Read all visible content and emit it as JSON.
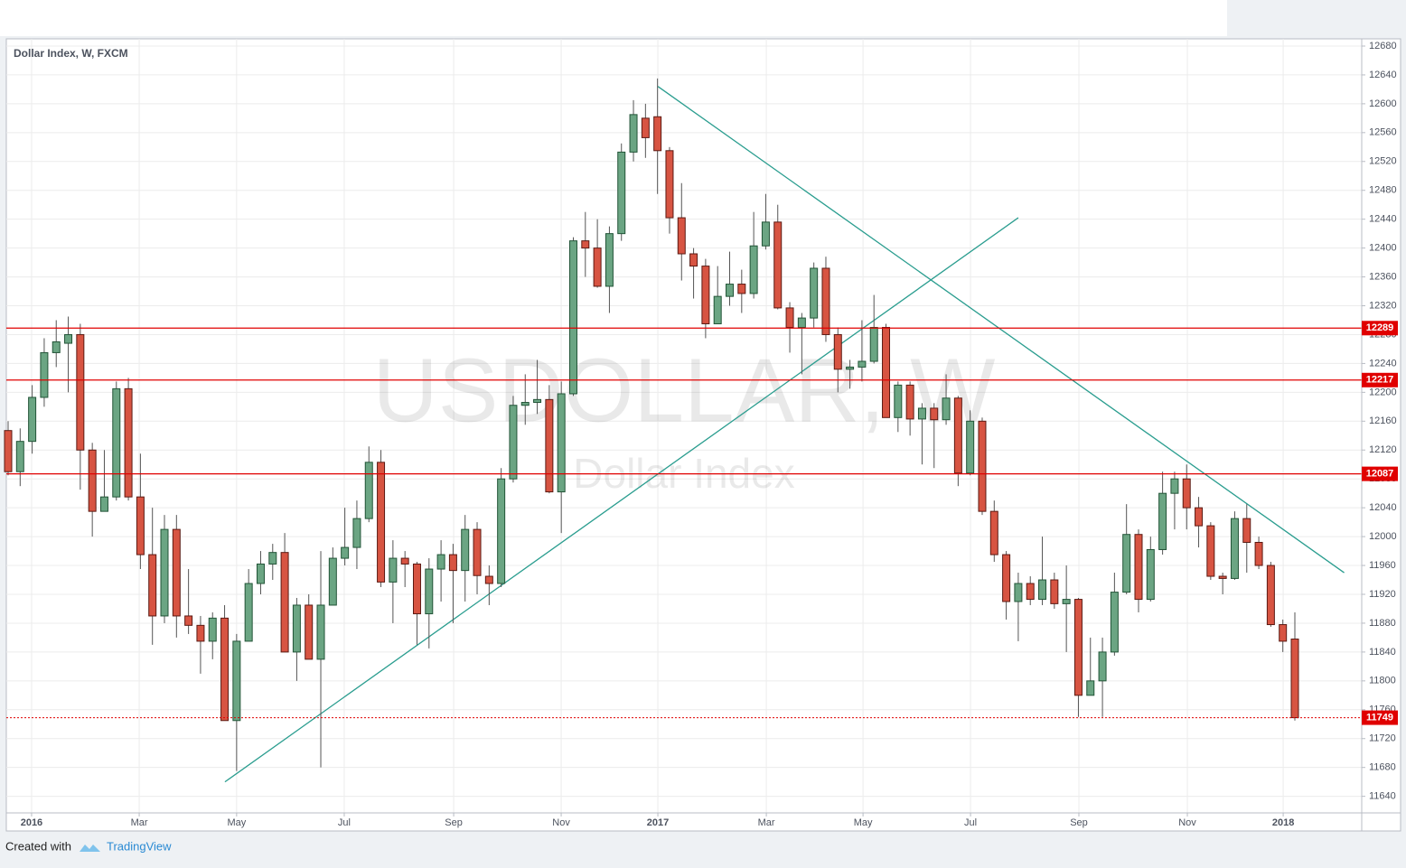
{
  "chart_data": {
    "type": "candlestick",
    "title": "Dollar Index, W, FXCM",
    "watermark": "USDOLLAR, W",
    "watermark_subtitle": "Dollar Index",
    "up_color": "#6ba583",
    "down_color": "#d75442",
    "x": [
      0,
      1,
      2,
      3,
      4,
      5,
      6,
      7,
      8,
      9,
      10,
      11,
      12,
      13,
      14,
      15,
      16,
      17,
      18,
      19,
      20,
      21,
      22,
      23,
      24,
      25,
      26,
      27,
      28,
      29,
      30,
      31,
      32,
      33,
      34,
      35,
      36,
      37,
      38,
      39,
      40,
      41,
      42,
      43,
      44,
      45,
      46,
      47,
      48,
      49,
      50,
      51,
      52,
      53,
      54,
      55,
      56,
      57,
      58,
      59,
      60,
      61,
      62,
      63,
      64,
      65,
      66,
      67,
      68,
      69,
      70,
      71,
      72,
      73,
      74,
      75,
      76,
      77,
      78,
      79,
      80,
      81,
      82,
      83,
      84,
      85,
      86,
      87,
      88,
      89,
      90,
      91,
      92,
      93,
      94,
      95,
      96,
      97,
      98,
      99,
      100,
      101,
      102,
      103,
      104,
      105,
      106,
      107
    ],
    "open": [
      12147,
      12090,
      12132,
      12193,
      12255,
      12268,
      12280,
      12120,
      12035,
      12055,
      12205,
      12055,
      11975,
      11890,
      12010,
      11890,
      11877,
      11855,
      11887,
      11745,
      11855,
      11935,
      11962,
      11978,
      11840,
      11905,
      11830,
      11905,
      11970,
      11985,
      12025,
      12103,
      11937,
      11970,
      11962,
      11893,
      11955,
      11975,
      11953,
      12010,
      11945,
      11935,
      12080,
      12182,
      12186,
      12190,
      12062,
      12198,
      12410,
      12400,
      12347,
      12420,
      12533,
      12580,
      12582,
      12535,
      12442,
      12392,
      12375,
      12295,
      12333,
      12350,
      12337,
      12403,
      12436,
      12317,
      12290,
      12303,
      12372,
      12280,
      12232,
      12235,
      12243,
      12290,
      12165,
      12210,
      12163,
      12178,
      12162,
      12192,
      12088,
      12160,
      12035,
      11975,
      11910,
      11935,
      11913,
      11940,
      11907,
      11913,
      11780,
      11800,
      11840,
      11923,
      12003,
      11913,
      11982,
      12060,
      12080,
      12040,
      12015,
      11945,
      11942,
      12025,
      11992,
      11960,
      11878,
      11858
    ],
    "high": [
      12160,
      12150,
      12210,
      12275,
      12300,
      12305,
      12295,
      12130,
      12120,
      12215,
      12220,
      12115,
      12040,
      12030,
      12030,
      11955,
      11890,
      11895,
      11905,
      11865,
      11955,
      11980,
      11990,
      12005,
      11915,
      11920,
      11980,
      11985,
      12040,
      12050,
      12125,
      12120,
      11995,
      11980,
      11965,
      11970,
      11995,
      11990,
      12030,
      12020,
      11960,
      12095,
      12195,
      12225,
      12245,
      12210,
      12215,
      12415,
      12450,
      12440,
      12430,
      12545,
      12605,
      12600,
      12635,
      12540,
      12490,
      12400,
      12385,
      12375,
      12395,
      12370,
      12450,
      12475,
      12460,
      12325,
      12310,
      12380,
      12388,
      12290,
      12245,
      12300,
      12335,
      12295,
      12215,
      12215,
      12185,
      12185,
      12225,
      12195,
      12175,
      12165,
      12050,
      11980,
      11950,
      11945,
      12000,
      11950,
      11960,
      11915,
      11860,
      11860,
      11950,
      12045,
      12010,
      12000,
      12090,
      12090,
      12100,
      12055,
      12020,
      11950,
      12035,
      12045,
      12000,
      11965,
      11885,
      11895
    ],
    "low": [
      12085,
      12070,
      12115,
      12180,
      12235,
      12200,
      12065,
      12000,
      12035,
      12050,
      12050,
      11955,
      11850,
      11880,
      11860,
      11865,
      11810,
      11830,
      11745,
      11675,
      11855,
      11920,
      11940,
      11840,
      11800,
      11830,
      11680,
      11905,
      11960,
      11955,
      12020,
      11930,
      11880,
      11930,
      11850,
      11845,
      11910,
      11880,
      11910,
      11920,
      11905,
      11930,
      12075,
      12155,
      12170,
      12060,
      12005,
      12195,
      12360,
      12345,
      12310,
      12410,
      12520,
      12525,
      12475,
      12420,
      12355,
      12330,
      12275,
      12295,
      12320,
      12310,
      12330,
      12398,
      12315,
      12255,
      12225,
      12290,
      12270,
      12200,
      12205,
      12215,
      12240,
      12165,
      12145,
      12140,
      12100,
      12095,
      12155,
      12070,
      12085,
      12030,
      11965,
      11885,
      11855,
      11905,
      11905,
      11900,
      11840,
      11750,
      11780,
      11750,
      11835,
      11920,
      11895,
      11910,
      11975,
      12010,
      12010,
      11985,
      11940,
      11920,
      11940,
      11950,
      11955,
      11875,
      11840,
      11745
    ],
    "close": [
      12090,
      12132,
      12193,
      12255,
      12270,
      12280,
      12120,
      12035,
      12055,
      12205,
      12055,
      11975,
      11890,
      12010,
      11890,
      11877,
      11855,
      11887,
      11745,
      11855,
      11935,
      11962,
      11978,
      11840,
      11905,
      11830,
      11905,
      11970,
      11985,
      12025,
      12103,
      11937,
      11970,
      11962,
      11893,
      11955,
      11975,
      11953,
      12010,
      11946,
      11935,
      12080,
      12182,
      12186,
      12190,
      12062,
      12198,
      12410,
      12400,
      12347,
      12420,
      12533,
      12585,
      12553,
      12535,
      12442,
      12392,
      12375,
      12295,
      12333,
      12350,
      12337,
      12403,
      12436,
      12317,
      12290,
      12303,
      12372,
      12280,
      12232,
      12235,
      12243,
      12290,
      12165,
      12210,
      12163,
      12178,
      12162,
      12192,
      12088,
      12160,
      12035,
      11975,
      11910,
      11935,
      11913,
      11940,
      11907,
      11913,
      11780,
      11800,
      11840,
      11923,
      12003,
      11913,
      11982,
      12060,
      12080,
      12040,
      12015,
      11945,
      11942,
      12025,
      11992,
      11960,
      11878,
      11855,
      11749
    ],
    "xlim": [
      -0.15,
      112.56
    ],
    "xticks": [
      {
        "value": 1.95,
        "label": "2016"
      },
      {
        "value": 10.9,
        "label": "Mar"
      },
      {
        "value": 19.0,
        "label": "May"
      },
      {
        "value": 27.95,
        "label": "Jul"
      },
      {
        "value": 37.05,
        "label": "Sep"
      },
      {
        "value": 45.99,
        "label": "Nov"
      },
      {
        "value": 54.03,
        "label": "2017"
      },
      {
        "value": 63.05,
        "label": "Mar"
      },
      {
        "value": 71.09,
        "label": "May"
      },
      {
        "value": 80.03,
        "label": "Jul"
      },
      {
        "value": 89.04,
        "label": "Sep"
      },
      {
        "value": 98.06,
        "label": "Nov"
      },
      {
        "value": 106.03,
        "label": "2018"
      }
    ],
    "ylim": [
      11617,
      12690
    ],
    "yticks": [
      11640,
      11680,
      11720,
      11760,
      11800,
      11840,
      11880,
      11920,
      11960,
      12000,
      12040,
      12080,
      12120,
      12160,
      12200,
      12240,
      12280,
      12320,
      12360,
      12400,
      12440,
      12480,
      12520,
      12560,
      12600,
      12640,
      12680
    ],
    "grid": true,
    "hlines": [
      {
        "value": 12289,
        "color": "#e00000"
      },
      {
        "value": 12217,
        "color": "#e00000"
      },
      {
        "value": 12087,
        "color": "#e00000"
      }
    ],
    "last_price": {
      "value": 11749,
      "color": "#e00000"
    },
    "trendlines": [
      {
        "x": [
          54.03,
          111.1
        ],
        "y": [
          12624,
          11950
        ],
        "color": "#2a9d8f"
      },
      {
        "x": [
          18.03,
          84.0
        ],
        "y": [
          11660,
          12442
        ],
        "color": "#2a9d8f"
      }
    ]
  },
  "footer": {
    "prefix": "Created with",
    "brand": "TradingView"
  }
}
